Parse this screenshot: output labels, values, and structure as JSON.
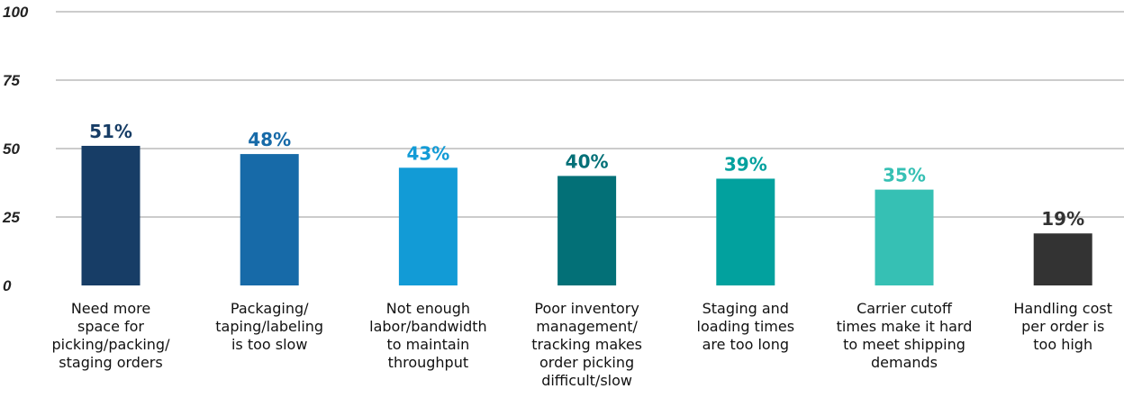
{
  "chart_data": {
    "type": "bar",
    "title": "",
    "xlabel": "",
    "ylabel": "",
    "ylim": [
      0,
      100
    ],
    "yticks": [
      0,
      25,
      50,
      75,
      100
    ],
    "grid": true,
    "categories": [
      [
        "Need more",
        "space for",
        "picking/packing/",
        "staging orders"
      ],
      [
        "Packaging/",
        "taping/labeling",
        "is too slow"
      ],
      [
        "Not enough",
        "labor/bandwidth",
        "to maintain",
        "throughput"
      ],
      [
        "Poor inventory",
        "management/",
        "tracking makes",
        "order picking",
        "difficult/slow"
      ],
      [
        "Staging and",
        "loading times",
        "are too long"
      ],
      [
        "Carrier cutoff",
        "times make it hard",
        "to meet shipping",
        "demands"
      ],
      [
        "Handling cost",
        "per order is",
        "too high"
      ]
    ],
    "values": [
      51,
      48,
      43,
      40,
      39,
      35,
      19
    ],
    "value_labels": [
      "51%",
      "48%",
      "43%",
      "40%",
      "39%",
      "35%",
      "19%"
    ],
    "colors": [
      "#173d66",
      "#176aa8",
      "#129bd6",
      "#037077",
      "#02a19e",
      "#36c0b4",
      "#333333"
    ]
  }
}
